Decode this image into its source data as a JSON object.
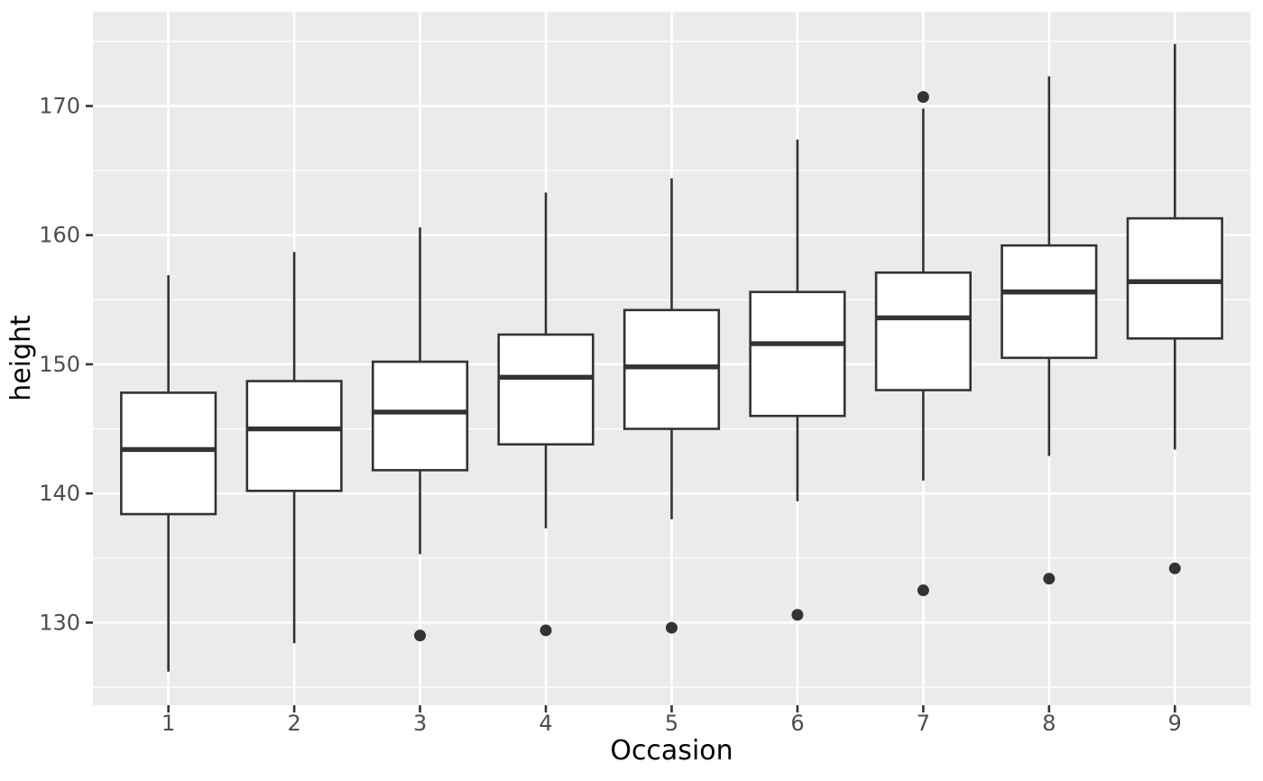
{
  "figure": {
    "background": "#FFFFFF"
  },
  "chart_data": {
    "type": "boxplot",
    "title": "",
    "xlabel": "Occasion",
    "ylabel": "height",
    "categories": [
      "1",
      "2",
      "3",
      "4",
      "5",
      "6",
      "7",
      "8",
      "9"
    ],
    "y_ticks": [
      130,
      140,
      150,
      160,
      170
    ],
    "y_minor_ticks": [
      125,
      135,
      145,
      155,
      165,
      175
    ],
    "ylim": [
      123.6,
      177.3
    ],
    "grid": "white major and minor horizontal lines, white vertical lines at each category",
    "legend_position": "none",
    "series": [
      {
        "occasion": "1",
        "min": 126.2,
        "q1": 138.4,
        "median": 143.4,
        "q3": 147.8,
        "max": 156.9,
        "outliers": []
      },
      {
        "occasion": "2",
        "min": 128.4,
        "q1": 140.2,
        "median": 145.0,
        "q3": 148.7,
        "max": 158.7,
        "outliers": []
      },
      {
        "occasion": "3",
        "min": 135.3,
        "q1": 141.8,
        "median": 146.3,
        "q3": 150.2,
        "max": 160.6,
        "outliers": [
          129.0
        ]
      },
      {
        "occasion": "4",
        "min": 137.3,
        "q1": 143.8,
        "median": 149.0,
        "q3": 152.3,
        "max": 163.3,
        "outliers": [
          129.4
        ]
      },
      {
        "occasion": "5",
        "min": 138.0,
        "q1": 145.0,
        "median": 149.8,
        "q3": 154.2,
        "max": 164.4,
        "outliers": [
          129.6
        ]
      },
      {
        "occasion": "6",
        "min": 139.4,
        "q1": 146.0,
        "median": 151.6,
        "q3": 155.6,
        "max": 167.4,
        "outliers": [
          130.6
        ]
      },
      {
        "occasion": "7",
        "min": 141.0,
        "q1": 148.0,
        "median": 153.6,
        "q3": 157.1,
        "max": 169.8,
        "outliers": [
          132.5,
          170.7
        ]
      },
      {
        "occasion": "8",
        "min": 142.9,
        "q1": 150.5,
        "median": 155.6,
        "q3": 159.2,
        "max": 172.3,
        "outliers": [
          133.4
        ]
      },
      {
        "occasion": "9",
        "min": 143.4,
        "q1": 152.0,
        "median": 156.4,
        "q3": 161.3,
        "max": 174.8,
        "outliers": [
          134.2
        ]
      }
    ],
    "colors": {
      "panel_bg": "#EBEBEB",
      "grid": "#FFFFFF",
      "box_stroke": "#333333",
      "box_fill": "#FFFFFF",
      "median": "#333333",
      "whisker": "#333333",
      "outlier": "#333333",
      "tick_mark": "#333333",
      "axis_text": "#4D4D4D",
      "axis_title": "#000000"
    }
  }
}
